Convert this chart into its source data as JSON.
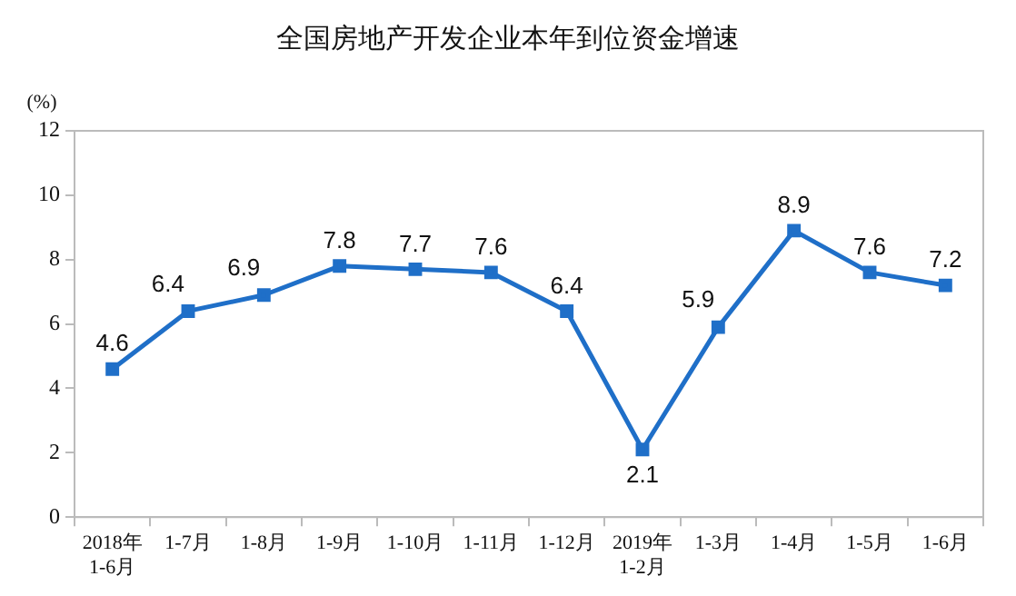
{
  "chart_data": {
    "type": "line",
    "title": "全国房地产开发企业本年到位资金增速",
    "ylabel": "(%)",
    "categories": [
      "2018年\n1-6月",
      "1-7月",
      "1-8月",
      "1-9月",
      "1-10月",
      "1-11月",
      "1-12月",
      "2019年\n1-2月",
      "1-3月",
      "1-4月",
      "1-5月",
      "1-6月"
    ],
    "series": [
      {
        "color": "#1f6fc8",
        "values": [
          4.6,
          6.4,
          6.9,
          7.8,
          7.7,
          7.6,
          6.4,
          2.1,
          5.9,
          8.9,
          7.6,
          7.2
        ]
      }
    ],
    "ylim": [
      0,
      12
    ],
    "yticks": [
      0,
      2,
      4,
      6,
      8,
      10,
      12
    ],
    "grid": false,
    "legend": false,
    "marker": "square",
    "line_style": "solid",
    "data_labels": true
  }
}
